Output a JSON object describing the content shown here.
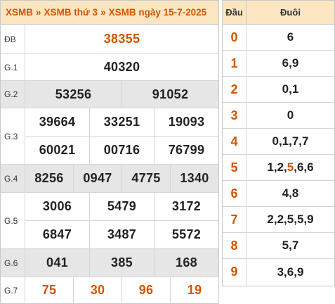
{
  "header": {
    "crumb_1": "XSMB",
    "crumb_2": "XSMB thứ 3",
    "crumb_3": "XSMB ngày 15-7-2025",
    "separator": "»"
  },
  "prizes": {
    "db": {
      "label": "ĐB",
      "numbers": [
        "38355"
      ]
    },
    "g1": {
      "label": "G.1",
      "numbers": [
        "40320"
      ]
    },
    "g2": {
      "label": "G.2",
      "numbers": [
        "53256",
        "91052"
      ]
    },
    "g3": {
      "label": "G.3",
      "numbers": [
        "39664",
        "33251",
        "19093",
        "60021",
        "00716",
        "76799"
      ]
    },
    "g4": {
      "label": "G.4",
      "numbers": [
        "8256",
        "0947",
        "4775",
        "1340"
      ]
    },
    "g5": {
      "label": "G.5",
      "numbers": [
        "3006",
        "5479",
        "3172",
        "6847",
        "3487",
        "5572"
      ]
    },
    "g6": {
      "label": "G.6",
      "numbers": [
        "041",
        "385",
        "168"
      ]
    },
    "g7": {
      "label": "G.7",
      "numbers": [
        "75",
        "30",
        "96",
        "19"
      ]
    }
  },
  "loto": {
    "head_label": "Đầu",
    "tail_label": "Đuôi",
    "rows": [
      {
        "head": "0",
        "tail": "6"
      },
      {
        "head": "1",
        "tail": "6,9"
      },
      {
        "head": "2",
        "tail": "0,1"
      },
      {
        "head": "3",
        "tail": "0"
      },
      {
        "head": "4",
        "tail": "0,1,7,7"
      },
      {
        "head": "5",
        "tail_before": "1,2,",
        "tail_highlight": "5",
        "tail_after": ",6,6"
      },
      {
        "head": "6",
        "tail": "4,8"
      },
      {
        "head": "7",
        "tail": "2,2,5,5,9"
      },
      {
        "head": "8",
        "tail": "5,7"
      },
      {
        "head": "9",
        "tail": "3,6,9"
      }
    ]
  },
  "colors": {
    "accent": "#d35400",
    "header_bg": "#fbe6c1",
    "row_shade": "#e6e6e6"
  }
}
